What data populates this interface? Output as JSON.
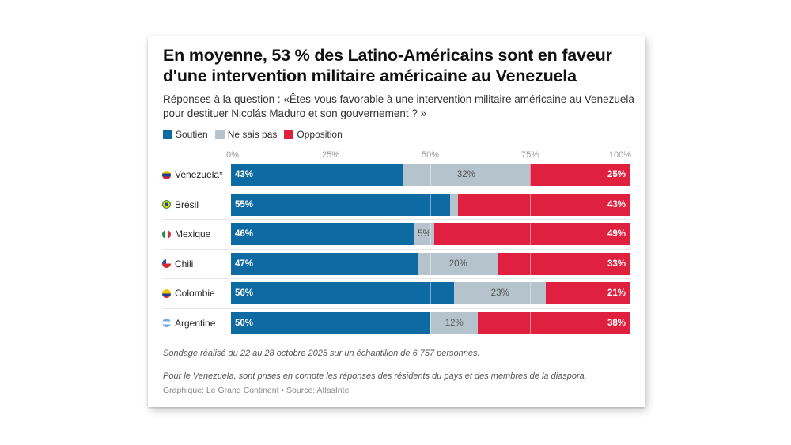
{
  "chart_data": {
    "type": "bar",
    "orientation": "horizontal",
    "stacked": true,
    "title": "En moyenne, 53 % des Latino-Américains sont en faveur d'une intervention militaire américaine au Venezuela",
    "subtitle": "Réponses à la question : «Êtes-vous favorable à une intervention militaire américaine au Venezuela pour destituer Nicolás Maduro et son gouvernement ? »",
    "categories": [
      "Venezuela*",
      "Brésil",
      "Mexique",
      "Chili",
      "Colombie",
      "Argentine"
    ],
    "series": [
      {
        "name": "Soutien",
        "key": "support",
        "color": "#0e6aa3",
        "values": [
          43,
          55,
          46,
          47,
          56,
          50
        ],
        "labels": [
          "43%",
          "55%",
          "46%",
          "47%",
          "56%",
          "50%"
        ]
      },
      {
        "name": "Ne sais pas",
        "key": "dk",
        "color": "#b5c3cc",
        "values": [
          32,
          2,
          5,
          20,
          23,
          12
        ],
        "labels": [
          "32%",
          "",
          "5%",
          "20%",
          "23%",
          "12%"
        ]
      },
      {
        "name": "Opposition",
        "key": "oppose",
        "color": "#e0203f",
        "values": [
          25,
          43,
          49,
          33,
          21,
          38
        ],
        "labels": [
          "25%",
          "43%",
          "49%",
          "33%",
          "21%",
          "38%"
        ]
      }
    ],
    "x_ticks": [
      "0%",
      "25%",
      "50%",
      "75%",
      "100%"
    ],
    "x_tick_values": [
      0,
      25,
      50,
      75,
      100
    ],
    "xlim": [
      0,
      100
    ],
    "xlabel": "",
    "ylabel": "",
    "legend_position": "top-left",
    "grid": true
  },
  "flags": [
    {
      "country": "Venezuela*",
      "icon": "venezuela-flag-icon",
      "colors": [
        "#f5c400",
        "#1f3f95",
        "#d62630"
      ]
    },
    {
      "country": "Brésil",
      "icon": "brazil-flag-icon",
      "colors": [
        "#2f9a3e",
        "#f5d20e",
        "#21479a"
      ]
    },
    {
      "country": "Mexique",
      "icon": "mexico-flag-icon",
      "colors": [
        "#2a8a48",
        "#ffffff",
        "#d3313a"
      ]
    },
    {
      "country": "Chili",
      "icon": "chile-flag-icon",
      "colors": [
        "#2a4fa0",
        "#ffffff",
        "#d62630"
      ]
    },
    {
      "country": "Colombie",
      "icon": "colombia-flag-icon",
      "colors": [
        "#f5c400",
        "#1f3f95",
        "#d62630"
      ]
    },
    {
      "country": "Argentine",
      "icon": "argentina-flag-icon",
      "colors": [
        "#75aadb",
        "#ffffff",
        "#75aadb"
      ]
    }
  ],
  "notes": {
    "sample": "Sondage réalisé du 22 au 28 octobre 2025 sur un échantillon de 6 757 personnes.",
    "venezuela": "Pour le Venezuela, sont prises en compte les réponses des résidents du pays et des membres de la diaspora.",
    "credit": "Graphique: Le Grand Continent • Source: AtlasIntel"
  }
}
